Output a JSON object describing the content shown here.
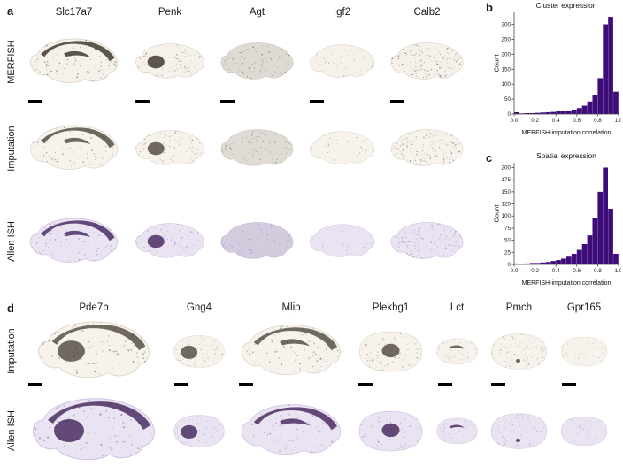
{
  "panels": {
    "a": {
      "label": "a",
      "rows": [
        "MERFISH",
        "Imputation",
        "Allen ISH"
      ],
      "genes": [
        {
          "name": "Slc17a7",
          "pattern": "cortex",
          "shape": "sagittal"
        },
        {
          "name": "Penk",
          "pattern": "striatum",
          "shape": "sagittal"
        },
        {
          "name": "Agt",
          "pattern": "diffuse",
          "shape": "sagittal"
        },
        {
          "name": "Igf2",
          "pattern": "faint",
          "shape": "sagittal"
        },
        {
          "name": "Calb2",
          "pattern": "scatter",
          "shape": "sagittal"
        }
      ]
    },
    "b": {
      "label": "b"
    },
    "c": {
      "label": "c"
    },
    "d": {
      "label": "d",
      "rows": [
        "Imputation",
        "Allen ISH"
      ],
      "genes": [
        {
          "name": "Pde7b",
          "pattern": "striatum-cortex",
          "shape": "sagittal"
        },
        {
          "name": "Gng4",
          "pattern": "bulb",
          "shape": "round"
        },
        {
          "name": "Mlip",
          "pattern": "cortex",
          "shape": "sagittal"
        },
        {
          "name": "Plekhg1",
          "pattern": "thalamus",
          "shape": "round"
        },
        {
          "name": "Lct",
          "pattern": "hippocampus",
          "shape": "round"
        },
        {
          "name": "Pmch",
          "pattern": "hypothalamus",
          "shape": "round"
        },
        {
          "name": "Gpr165",
          "pattern": "faint",
          "shape": "round"
        }
      ]
    }
  },
  "chart_data": [
    {
      "id": "b",
      "type": "bar",
      "title": "Cluster expression",
      "xlabel": "MERFISH-imputation correlation",
      "ylabel": "Count",
      "xlim": [
        0.0,
        1.0
      ],
      "ylim": [
        0,
        340
      ],
      "x_ticks": [
        0.0,
        0.2,
        0.4,
        0.6,
        0.8,
        1.0
      ],
      "y_ticks": [
        0,
        50,
        100,
        150,
        200,
        250,
        300
      ],
      "bin_start": 0.0,
      "bin_width": 0.05,
      "values": [
        6,
        2,
        3,
        3,
        4,
        5,
        6,
        7,
        9,
        10,
        12,
        15,
        20,
        28,
        42,
        65,
        120,
        300,
        325,
        75
      ]
    },
    {
      "id": "c",
      "type": "bar",
      "title": "Spatial expression",
      "xlabel": "MERFISH-imputation correlation",
      "ylabel": "Count",
      "xlim": [
        0.0,
        1.0
      ],
      "ylim": [
        0,
        210
      ],
      "x_ticks": [
        0.0,
        0.2,
        0.4,
        0.6,
        0.8,
        1.0
      ],
      "y_ticks": [
        0,
        25,
        50,
        75,
        100,
        125,
        150,
        175,
        200
      ],
      "bin_start": 0.0,
      "bin_width": 0.05,
      "values": [
        2,
        1,
        2,
        3,
        3,
        4,
        5,
        7,
        9,
        12,
        16,
        22,
        30,
        42,
        60,
        95,
        150,
        200,
        115,
        22
      ]
    }
  ],
  "colors": {
    "hist_bar": "#3d0c79",
    "scale_bar": "#000000",
    "merfish_base": "#f6f2eb",
    "allen_base": "#eae3f2",
    "allen_dark": "#412259",
    "ink_dark": "#3a332b"
  }
}
